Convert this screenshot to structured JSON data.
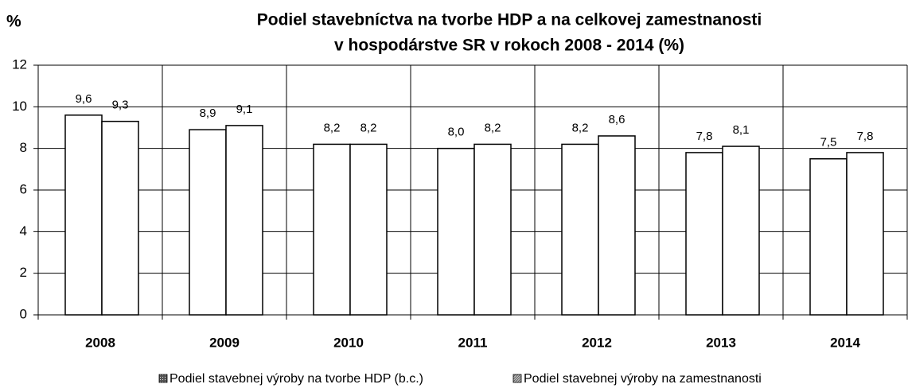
{
  "chart_data": {
    "type": "bar",
    "title": [
      "Podiel stavebníctva na tvorbe HDP a na celkovej zamestnanosti",
      "v hospodárstve SR v rokoch 2008 - 2014 (%)"
    ],
    "y_label": "%",
    "categories": [
      "2008",
      "2009",
      "2010",
      "2011",
      "2012",
      "2013",
      "2014"
    ],
    "series": [
      {
        "name": "Podiel stavebnej výroby na tvorbe HDP (b.c.)",
        "color": "#ffffff",
        "values": [
          9.6,
          8.9,
          8.2,
          8.0,
          8.2,
          7.8,
          7.5
        ],
        "value_labels": [
          "9,6",
          "8,9",
          "8,2",
          "8,0",
          "8,2",
          "7,8",
          "7,5"
        ]
      },
      {
        "name": "Podiel stavebnej výroby na zamestnanosti",
        "color": "#ffffff",
        "values": [
          9.3,
          9.1,
          8.2,
          8.2,
          8.6,
          8.1,
          7.8
        ],
        "value_labels": [
          "9,3",
          "9,1",
          "8,2",
          "8,2",
          "8,6",
          "8,1",
          "7,8"
        ]
      }
    ],
    "ylim": [
      0,
      12
    ],
    "yticks": [
      0,
      2,
      4,
      6,
      8,
      10,
      12
    ],
    "grid": true
  }
}
